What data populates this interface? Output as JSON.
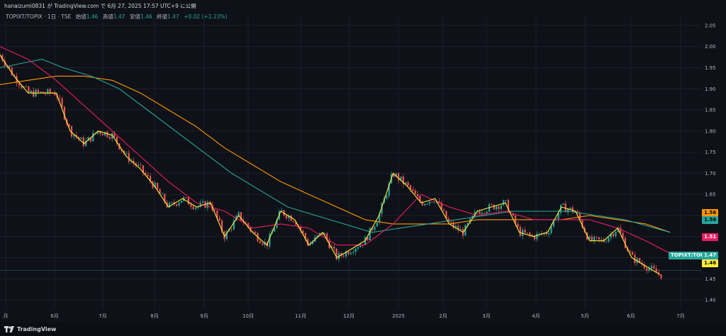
{
  "header": {
    "publish_line": "hanaizumi0831 が TradingView.com で 6月 27, 2025 17:57 UTC+9 に公開"
  },
  "legend": {
    "symbol": "TOPIXT/TOPIX · 1日 · TSE",
    "open_label": "始値",
    "open": "1.46",
    "high_label": "高値",
    "high": "1.47",
    "low_label": "安値",
    "low": "1.46",
    "close_label": "終値",
    "close": "1.47",
    "change": "+0.02 (+1.23%)"
  },
  "price_tags": {
    "ma_orange": "1.56",
    "ma_green": "1.56",
    "ma_pink": "1.51",
    "symbol_tag": "TOPIXT/TOPIX",
    "last_price": "1.47",
    "ma_yellow": "1.46"
  },
  "footer": {
    "brand": "TradingView"
  },
  "colors": {
    "up": "#26a69a",
    "down": "#ef5350",
    "ma_yellow": "#ffeb3b",
    "ma_pink": "#e91e63",
    "ma_green": "#26a69a",
    "ma_orange": "#ff9800"
  },
  "chart_data": {
    "type": "line",
    "title": "",
    "ylim": [
      1.38,
      2.07
    ],
    "yticks": [
      "2.05",
      "2.00",
      "1.95",
      "1.90",
      "1.85",
      "1.80",
      "1.75",
      "1.70",
      "1.65",
      "1.60",
      "1.55",
      "1.50",
      "1.45",
      "1.40"
    ],
    "xticks": [
      "月",
      "6月",
      "7月",
      "8月",
      "9月",
      "10月",
      "11月",
      "12月",
      "2025",
      "2月",
      "3月",
      "4月",
      "5月",
      "6月",
      "7月"
    ],
    "grid": true,
    "series": [
      {
        "key": "price",
        "x": [
          0,
          20,
          40,
          60,
          80,
          100,
          120,
          140,
          160,
          180,
          200,
          220,
          240,
          260,
          280,
          300,
          320,
          340,
          360,
          380,
          400,
          420,
          440,
          460,
          480,
          500,
          520,
          540,
          560,
          580,
          600,
          620,
          640,
          660,
          680,
          700,
          720,
          740,
          760,
          780,
          800,
          820,
          840,
          860,
          880,
          900,
          920,
          940
        ],
        "values": [
          1.98,
          1.93,
          1.89,
          1.89,
          1.89,
          1.8,
          1.77,
          1.8,
          1.79,
          1.74,
          1.71,
          1.67,
          1.62,
          1.64,
          1.62,
          1.63,
          1.55,
          1.6,
          1.56,
          1.53,
          1.61,
          1.59,
          1.53,
          1.56,
          1.5,
          1.52,
          1.54,
          1.6,
          1.7,
          1.67,
          1.63,
          1.64,
          1.58,
          1.56,
          1.61,
          1.62,
          1.63,
          1.56,
          1.55,
          1.56,
          1.62,
          1.61,
          1.54,
          1.54,
          1.57,
          1.5,
          1.48,
          1.46
        ]
      },
      {
        "key": "ma_pink",
        "x": [
          0,
          40,
          80,
          120,
          160,
          200,
          240,
          280,
          320,
          360,
          400,
          440,
          480,
          520,
          560,
          600,
          640,
          680,
          720,
          760,
          800,
          840,
          880,
          920,
          955
        ],
        "values": [
          2.0,
          1.97,
          1.92,
          1.86,
          1.8,
          1.74,
          1.68,
          1.63,
          1.61,
          1.57,
          1.58,
          1.57,
          1.53,
          1.53,
          1.58,
          1.65,
          1.62,
          1.6,
          1.61,
          1.59,
          1.59,
          1.59,
          1.57,
          1.54,
          1.51
        ]
      },
      {
        "key": "ma_green",
        "x": [
          0,
          30,
          60,
          90,
          130,
          170,
          210,
          250,
          290,
          330,
          370,
          410,
          450,
          490,
          530,
          570,
          610,
          650,
          690,
          730,
          770,
          810,
          850,
          890,
          955
        ],
        "values": [
          1.95,
          1.96,
          1.97,
          1.95,
          1.93,
          1.9,
          1.85,
          1.8,
          1.75,
          1.7,
          1.66,
          1.62,
          1.6,
          1.58,
          1.56,
          1.57,
          1.58,
          1.59,
          1.6,
          1.61,
          1.61,
          1.61,
          1.6,
          1.59,
          1.56
        ]
      },
      {
        "key": "ma_orange",
        "x": [
          0,
          40,
          80,
          120,
          160,
          200,
          240,
          280,
          320,
          360,
          400,
          440,
          480,
          520,
          560,
          600,
          640,
          680,
          720,
          760,
          800,
          840,
          880,
          920,
          955
        ],
        "values": [
          1.91,
          1.92,
          1.93,
          1.93,
          1.92,
          1.89,
          1.85,
          1.81,
          1.76,
          1.72,
          1.68,
          1.65,
          1.62,
          1.59,
          1.58,
          1.58,
          1.58,
          1.59,
          1.59,
          1.59,
          1.59,
          1.6,
          1.59,
          1.58,
          1.56
        ]
      }
    ]
  }
}
